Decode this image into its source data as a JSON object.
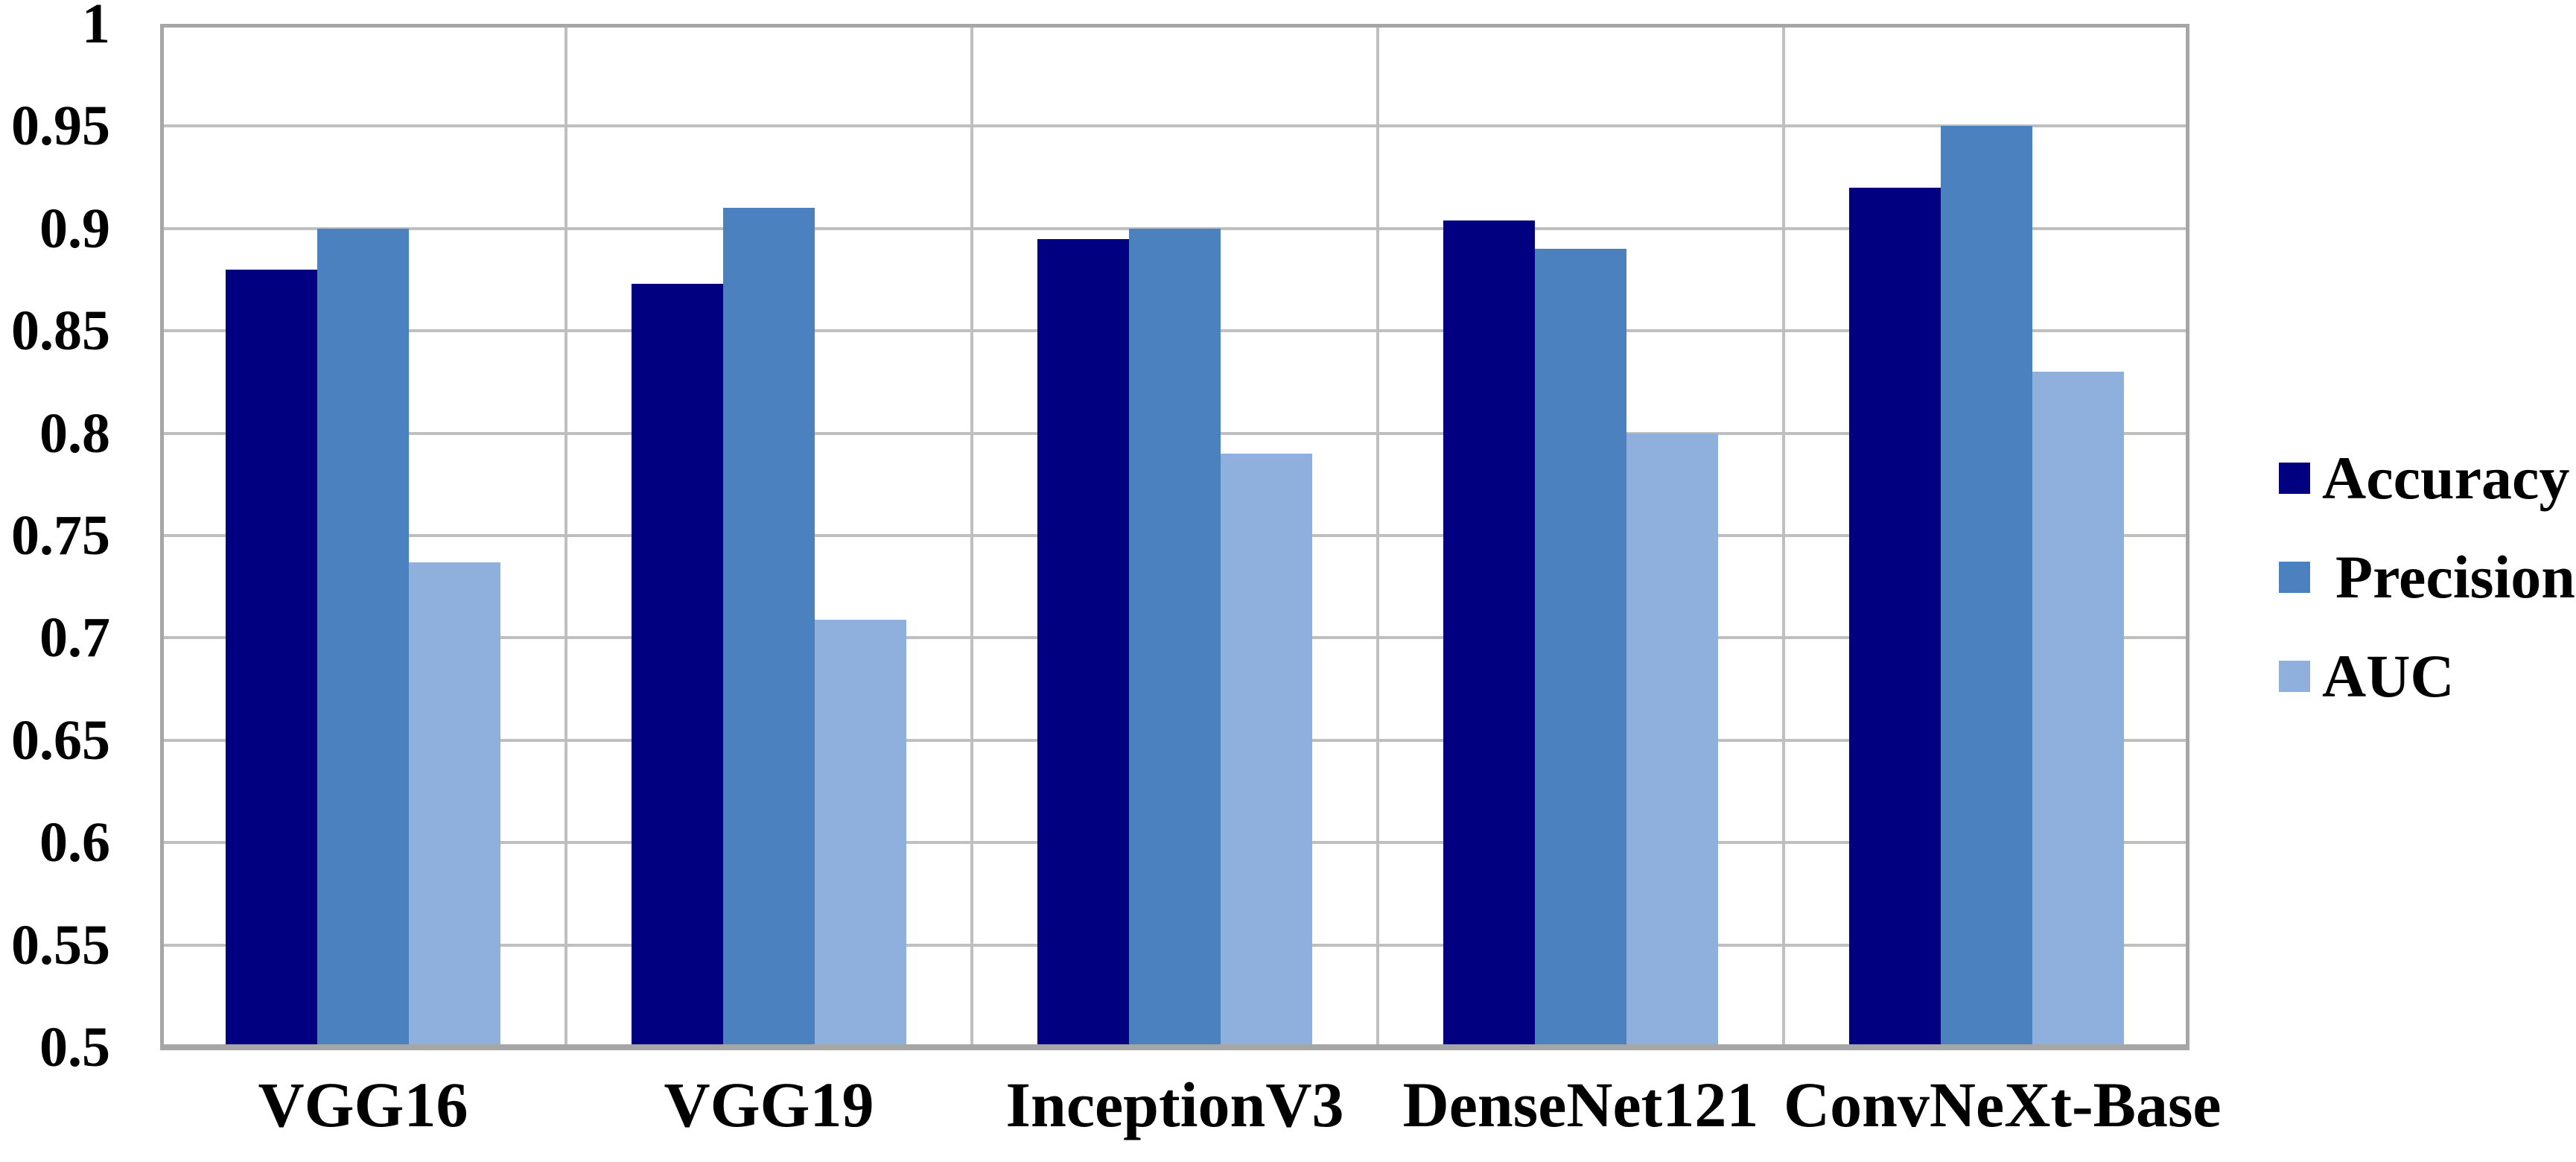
{
  "chart_data": {
    "type": "bar",
    "title": "",
    "xlabel": "",
    "ylabel": "",
    "categories": [
      "VGG16",
      "VGG19",
      "InceptionV3",
      "DenseNet121",
      "ConvNeXt-Base"
    ],
    "series": [
      {
        "name": "Accuracy",
        "color": "#000080",
        "values": [
          0.88,
          0.873,
          0.895,
          0.904,
          0.92
        ]
      },
      {
        "name": "Precision",
        "color": "#4A81BE",
        "values": [
          0.9,
          0.91,
          0.9,
          0.89,
          0.95
        ]
      },
      {
        "name": "AUC",
        "color": "#8FB0DC",
        "values": [
          0.737,
          0.709,
          0.79,
          0.8,
          0.83
        ]
      }
    ],
    "ylim": [
      0.5,
      1.0
    ],
    "ytick_step": 0.05,
    "yticks": [
      "1",
      "0.95",
      "0.9",
      "0.85",
      "0.8",
      "0.75",
      "0.7",
      "0.65",
      "0.6",
      "0.55",
      "0.5"
    ],
    "grid": true,
    "gridline_color": "#BFBFBF",
    "axis_color": "#A6A6A6",
    "legend_position": "right",
    "legend_labels": [
      "Accuracy",
      "Precision",
      "AUC"
    ]
  },
  "colors": {
    "background": "#FFFFFF",
    "text": "#000000",
    "gridline": "#BFBFBF",
    "axis": "#A6A6A6"
  }
}
